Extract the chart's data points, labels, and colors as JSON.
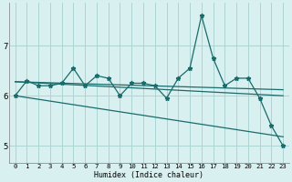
{
  "xlabel": "Humidex (Indice chaleur)",
  "bg_color": "#d8f0f0",
  "grid_color": "#aed4d4",
  "line_color": "#1a6b6b",
  "xlim": [
    -0.5,
    23.5
  ],
  "ylim": [
    4.65,
    7.85
  ],
  "yticks": [
    5,
    6,
    7
  ],
  "xticks": [
    0,
    1,
    2,
    3,
    4,
    5,
    6,
    7,
    8,
    9,
    10,
    11,
    12,
    13,
    14,
    15,
    16,
    17,
    18,
    19,
    20,
    21,
    22,
    23
  ],
  "main_x": [
    0,
    1,
    2,
    3,
    4,
    5,
    6,
    7,
    8,
    9,
    10,
    11,
    12,
    13,
    14,
    15,
    16,
    17,
    18,
    19,
    20,
    21,
    22,
    23
  ],
  "main_y": [
    6.0,
    6.3,
    6.2,
    6.2,
    6.25,
    6.55,
    6.2,
    6.4,
    6.35,
    6.0,
    6.25,
    6.25,
    6.2,
    5.95,
    6.35,
    6.55,
    7.6,
    6.75,
    6.2,
    6.35,
    6.35,
    5.95,
    5.4,
    5.0
  ],
  "trend1_x": [
    0,
    23
  ],
  "trend1_y": [
    6.28,
    6.12
  ],
  "trend2_x": [
    0,
    23
  ],
  "trend2_y": [
    6.28,
    6.0
  ],
  "trend3_x": [
    0,
    23
  ],
  "trend3_y": [
    6.0,
    5.18
  ]
}
